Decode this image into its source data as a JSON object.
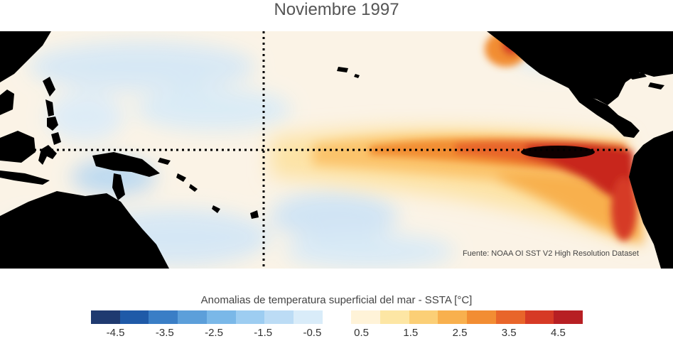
{
  "title": "Noviembre 1997",
  "source_note": "Fuente: NOAA OI SST V2 High Resolution Dataset",
  "colorbar": {
    "label": "Anomalias de temperatura superficial del mar - SSTA  [°C]",
    "ticks": [
      "-4.5",
      "-3.5",
      "-2.5",
      "-1.5",
      "-0.5",
      "0.5",
      "1.5",
      "2.5",
      "3.5",
      "4.5"
    ],
    "tick_values": [
      -4.5,
      -3.5,
      -2.5,
      -1.5,
      -0.5,
      0.5,
      1.5,
      2.5,
      3.5,
      4.5
    ],
    "range": [
      -5,
      5
    ],
    "colors": [
      "#1f3a70",
      "#1f5aa8",
      "#3a7ec6",
      "#5c9fda",
      "#7ab8e8",
      "#9dcdf1",
      "#bcdcf5",
      "#d9ecf9",
      "#ffffff",
      "#fff3d8",
      "#fde6a4",
      "#fbcf76",
      "#f8b04e",
      "#f28d33",
      "#e8652a",
      "#d63a25",
      "#b71f23"
    ]
  },
  "map": {
    "land_color": "#000000",
    "reference_lines": [
      "equator",
      "date-line"
    ]
  }
}
